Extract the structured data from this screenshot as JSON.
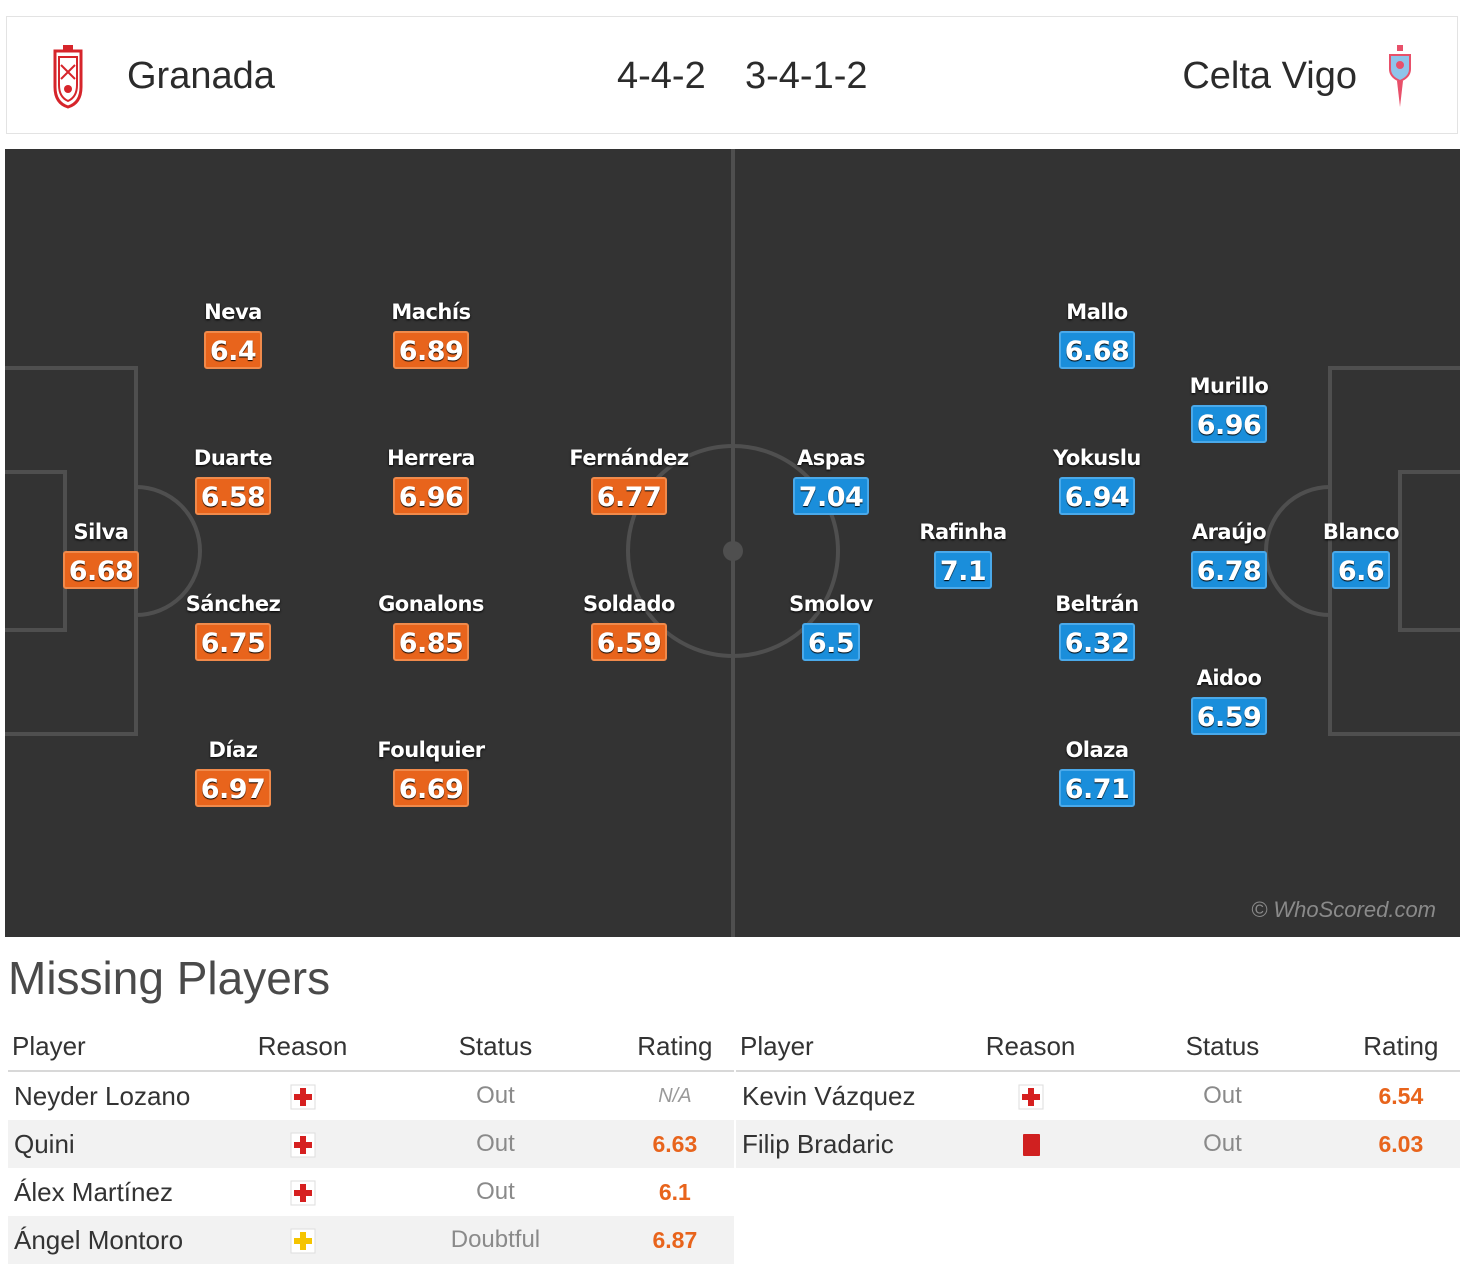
{
  "header": {
    "home_team": "Granada",
    "away_team": "Celta Vigo",
    "home_formation": "4-4-2",
    "away_formation": "3-4-1-2",
    "home_crest_icon": "granada-crest-icon",
    "away_crest_icon": "celta-vigo-crest-icon"
  },
  "colors": {
    "home_rating": "#e8641c",
    "away_rating": "#1a8edb",
    "pitch": "#333333"
  },
  "pitch": {
    "watermark": "© WhoScored.com",
    "home_players": [
      {
        "name": "Silva",
        "rating": "6.68"
      },
      {
        "name": "Neva",
        "rating": "6.4"
      },
      {
        "name": "Duarte",
        "rating": "6.58"
      },
      {
        "name": "Sánchez",
        "rating": "6.75"
      },
      {
        "name": "Díaz",
        "rating": "6.97"
      },
      {
        "name": "Machís",
        "rating": "6.89"
      },
      {
        "name": "Herrera",
        "rating": "6.96"
      },
      {
        "name": "Gonalons",
        "rating": "6.85"
      },
      {
        "name": "Foulquier",
        "rating": "6.69"
      },
      {
        "name": "Fernández",
        "rating": "6.77"
      },
      {
        "name": "Soldado",
        "rating": "6.59"
      }
    ],
    "away_players": [
      {
        "name": "Aspas",
        "rating": "7.04"
      },
      {
        "name": "Smolov",
        "rating": "6.5"
      },
      {
        "name": "Rafinha",
        "rating": "7.1"
      },
      {
        "name": "Mallo",
        "rating": "6.68"
      },
      {
        "name": "Yokuslu",
        "rating": "6.94"
      },
      {
        "name": "Beltrán",
        "rating": "6.32"
      },
      {
        "name": "Olaza",
        "rating": "6.71"
      },
      {
        "name": "Murillo",
        "rating": "6.96"
      },
      {
        "name": "Araújo",
        "rating": "6.78"
      },
      {
        "name": "Aidoo",
        "rating": "6.59"
      },
      {
        "name": "Blanco",
        "rating": "6.6"
      }
    ]
  },
  "missing": {
    "title": "Missing Players",
    "columns": [
      "Player",
      "Reason",
      "Status",
      "Rating"
    ],
    "home": [
      {
        "player": "Neyder Lozano",
        "reason_icon": "injury-icon",
        "status": "Out",
        "rating": "N/A"
      },
      {
        "player": "Quini",
        "reason_icon": "injury-icon",
        "status": "Out",
        "rating": "6.63"
      },
      {
        "player": "Álex Martínez",
        "reason_icon": "injury-icon",
        "status": "Out",
        "rating": "6.1"
      },
      {
        "player": "Ángel Montoro",
        "reason_icon": "doubtful-injury-icon",
        "status": "Doubtful",
        "rating": "6.87"
      }
    ],
    "away": [
      {
        "player": "Kevin Vázquez",
        "reason_icon": "injury-icon",
        "status": "Out",
        "rating": "6.54"
      },
      {
        "player": "Filip Bradaric",
        "reason_icon": "red-card-icon",
        "status": "Out",
        "rating": "6.03"
      }
    ]
  }
}
